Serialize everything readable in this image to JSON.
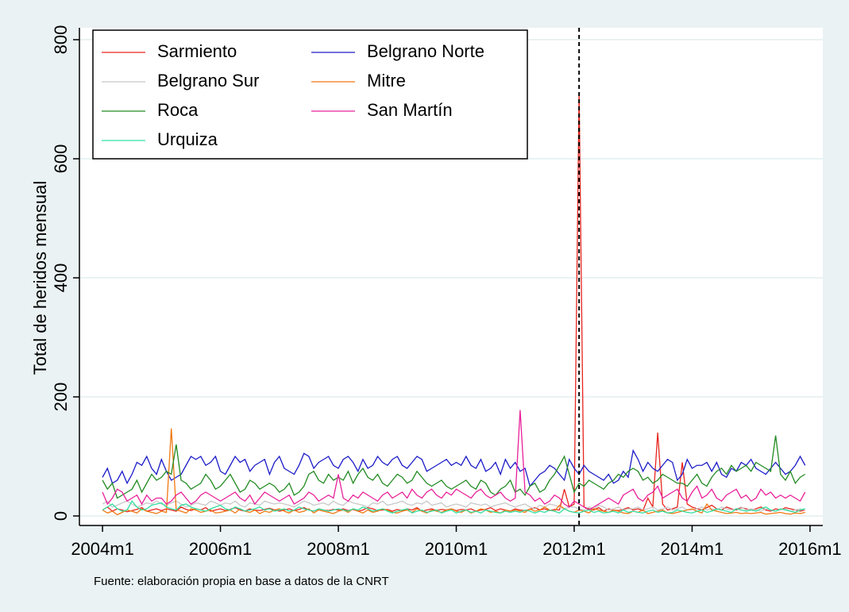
{
  "chart_data": {
    "type": "line",
    "ylabel": "Total de heridos mensual",
    "note": "Fuente: elaboración propia en base a datos de la CNRT",
    "x": [
      528,
      529,
      530,
      531,
      532,
      533,
      534,
      535,
      536,
      537,
      538,
      539,
      540,
      541,
      542,
      543,
      544,
      545,
      546,
      547,
      548,
      549,
      550,
      551,
      552,
      553,
      554,
      555,
      556,
      557,
      558,
      559,
      560,
      561,
      562,
      563,
      564,
      565,
      566,
      567,
      568,
      569,
      570,
      571,
      572,
      573,
      574,
      575,
      576,
      577,
      578,
      579,
      580,
      581,
      582,
      583,
      584,
      585,
      586,
      587,
      588,
      589,
      590,
      591,
      592,
      593,
      594,
      595,
      596,
      597,
      598,
      599,
      600,
      601,
      602,
      603,
      604,
      605,
      606,
      607,
      608,
      609,
      610,
      611,
      612,
      613,
      614,
      615,
      616,
      617,
      618,
      619,
      620,
      621,
      622,
      623,
      624,
      625,
      626,
      627,
      628,
      629,
      630,
      631,
      632,
      633,
      634,
      635,
      636,
      637,
      638,
      639,
      640,
      641,
      642,
      643,
      644,
      645,
      646,
      647,
      648,
      649,
      650,
      651,
      652,
      653,
      654,
      655,
      656,
      657,
      658,
      659,
      660,
      661,
      662,
      663,
      664,
      665,
      666,
      667,
      668,
      669,
      670,
      671
    ],
    "xlim": [
      523.3,
      674.6
    ],
    "xticks": [
      {
        "value": 528,
        "label": "2004m1"
      },
      {
        "value": 552,
        "label": "2006m1"
      },
      {
        "value": 576,
        "label": "2008m1"
      },
      {
        "value": 600,
        "label": "2010m1"
      },
      {
        "value": 624,
        "label": "2012m1"
      },
      {
        "value": 648,
        "label": "2014m1"
      },
      {
        "value": 672,
        "label": "2016m1"
      }
    ],
    "ylim": [
      -16,
      820
    ],
    "yticks": [
      0,
      200,
      400,
      600,
      800
    ],
    "grid": true,
    "vline": 625,
    "legend": "top-left",
    "series": [
      {
        "name": "Sarmiento",
        "color": "#e8251e",
        "values": [
          10,
          15,
          8,
          12,
          10,
          7,
          9,
          11,
          14,
          8,
          10,
          12,
          9,
          12,
          10,
          8,
          15,
          11,
          9,
          12,
          10,
          14,
          8,
          10,
          12,
          9,
          11,
          14,
          10,
          8,
          12,
          10,
          9,
          11,
          13,
          10,
          8,
          10,
          12,
          9,
          11,
          14,
          10,
          8,
          12,
          10,
          9,
          11,
          10,
          12,
          9,
          11,
          8,
          10,
          14,
          12,
          9,
          10,
          11,
          8,
          11,
          9,
          12,
          10,
          14,
          8,
          10,
          12,
          9,
          11,
          10,
          12,
          9,
          11,
          10,
          12,
          8,
          10,
          11,
          14,
          9,
          12,
          10,
          8,
          12,
          10,
          9,
          11,
          14,
          10,
          12,
          9,
          11,
          10,
          45,
          15,
          20,
          710,
          15,
          12,
          10,
          14,
          8,
          12,
          10,
          9,
          11,
          14,
          10,
          12,
          9,
          30,
          15,
          140,
          20,
          10,
          12,
          15,
          90,
          20,
          15,
          12,
          10,
          14,
          18,
          12,
          10,
          15,
          12,
          10,
          14,
          12,
          10,
          12,
          15,
          10,
          8,
          12,
          10,
          14,
          12,
          10,
          8,
          10
        ]
      },
      {
        "name": "Belgrano Norte",
        "color": "#1c1cc8",
        "values": [
          65,
          80,
          55,
          60,
          75,
          55,
          70,
          90,
          85,
          100,
          80,
          70,
          95,
          75,
          60,
          65,
          70,
          85,
          100,
          95,
          100,
          85,
          90,
          100,
          75,
          70,
          85,
          100,
          90,
          95,
          75,
          85,
          90,
          95,
          70,
          90,
          100,
          80,
          75,
          70,
          85,
          105,
          100,
          80,
          90,
          95,
          100,
          85,
          80,
          95,
          100,
          90,
          75,
          95,
          80,
          85,
          100,
          90,
          85,
          95,
          100,
          85,
          80,
          90,
          100,
          95,
          75,
          80,
          85,
          90,
          95,
          85,
          90,
          85,
          100,
          85,
          80,
          95,
          75,
          80,
          90,
          70,
          95,
          80,
          90,
          75,
          80,
          50,
          60,
          70,
          75,
          85,
          80,
          70,
          60,
          95,
          80,
          70,
          85,
          75,
          70,
          65,
          60,
          70,
          55,
          60,
          75,
          65,
          110,
          95,
          75,
          90,
          80,
          75,
          85,
          95,
          90,
          60,
          70,
          95,
          80,
          85,
          85,
          90,
          75,
          90,
          70,
          65,
          80,
          75,
          90,
          85,
          95,
          80,
          75,
          70,
          80,
          90,
          80,
          70,
          75,
          85,
          100,
          85
        ]
      },
      {
        "name": "Belgrano Sur",
        "color": "#c8c8c8",
        "values": [
          20,
          25,
          15,
          18,
          22,
          25,
          20,
          15,
          18,
          22,
          20,
          25,
          20,
          18,
          22,
          25,
          20,
          15,
          18,
          22,
          20,
          18,
          25,
          22,
          18,
          22,
          20,
          25,
          18,
          15,
          22,
          20,
          18,
          25,
          22,
          20,
          22,
          20,
          18,
          15,
          20,
          25,
          22,
          18,
          20,
          22,
          18,
          25,
          20,
          18,
          25,
          22,
          20,
          18,
          15,
          22,
          20,
          25,
          18,
          20,
          22,
          25,
          20,
          18,
          22,
          20,
          25,
          18,
          20,
          22,
          15,
          18,
          20,
          18,
          15,
          22,
          20,
          18,
          20,
          15,
          18,
          20,
          22,
          18,
          15,
          18,
          20,
          15,
          12,
          18,
          15,
          20,
          18,
          15,
          12,
          15,
          15,
          12,
          10,
          15,
          12,
          18,
          15,
          10,
          12,
          15,
          10,
          12,
          12,
          15,
          10,
          12,
          15,
          10,
          12,
          15,
          10,
          12,
          15,
          10,
          10,
          12,
          15,
          10,
          12,
          10,
          15,
          12,
          10,
          12,
          15,
          10,
          12,
          10,
          8,
          12,
          10,
          8,
          10,
          12,
          8,
          10,
          12,
          10
        ]
      },
      {
        "name": "Mitre",
        "color": "#f07810",
        "values": [
          10,
          5,
          8,
          2,
          6,
          10,
          8,
          5,
          12,
          8,
          6,
          4,
          8,
          6,
          147,
          10,
          8,
          5,
          12,
          10,
          6,
          8,
          10,
          5,
          6,
          8,
          10,
          5,
          12,
          8,
          6,
          10,
          4,
          8,
          6,
          10,
          12,
          8,
          5,
          10,
          6,
          8,
          12,
          5,
          10,
          8,
          6,
          4,
          8,
          10,
          6,
          12,
          8,
          5,
          10,
          6,
          8,
          12,
          10,
          6,
          5,
          8,
          10,
          6,
          12,
          8,
          5,
          10,
          8,
          6,
          10,
          12,
          8,
          6,
          10,
          5,
          8,
          12,
          10,
          6,
          8,
          5,
          10,
          8,
          10,
          8,
          6,
          12,
          8,
          10,
          15,
          10,
          8,
          18,
          12,
          8,
          6,
          10,
          8,
          5,
          12,
          10,
          8,
          6,
          10,
          8,
          5,
          4,
          8,
          6,
          10,
          4,
          6,
          8,
          10,
          5,
          4,
          6,
          8,
          10,
          12,
          8,
          5,
          20,
          10,
          8,
          6,
          4,
          5,
          6,
          4,
          5,
          4,
          5,
          6,
          3,
          4,
          5,
          6,
          4,
          3,
          5,
          4,
          6
        ]
      },
      {
        "name": "Roca",
        "color": "#228b22",
        "values": [
          60,
          45,
          55,
          30,
          35,
          40,
          45,
          60,
          40,
          55,
          70,
          60,
          65,
          75,
          70,
          120,
          60,
          55,
          45,
          50,
          55,
          70,
          60,
          45,
          50,
          60,
          70,
          55,
          40,
          45,
          60,
          55,
          45,
          50,
          55,
          50,
          40,
          45,
          55,
          35,
          40,
          50,
          70,
          75,
          60,
          55,
          70,
          60,
          65,
          60,
          75,
          55,
          70,
          80,
          65,
          60,
          70,
          55,
          50,
          60,
          70,
          65,
          55,
          60,
          75,
          65,
          55,
          50,
          55,
          60,
          50,
          45,
          50,
          55,
          60,
          50,
          45,
          60,
          55,
          40,
          35,
          45,
          50,
          60,
          40,
          45,
          35,
          50,
          55,
          40,
          45,
          60,
          70,
          85,
          100,
          70,
          40,
          55,
          50,
          60,
          55,
          50,
          45,
          55,
          60,
          70,
          65,
          75,
          80,
          75,
          60,
          65,
          55,
          60,
          70,
          65,
          60,
          55,
          55,
          50,
          60,
          70,
          55,
          50,
          65,
          75,
          80,
          70,
          85,
          75,
          80,
          85,
          75,
          90,
          85,
          80,
          75,
          135,
          70,
          60,
          75,
          55,
          65,
          70
        ]
      },
      {
        "name": "San Martín",
        "color": "#e8209a",
        "values": [
          40,
          20,
          30,
          45,
          40,
          25,
          30,
          35,
          20,
          35,
          25,
          30,
          30,
          20,
          25,
          35,
          40,
          30,
          20,
          25,
          35,
          40,
          35,
          30,
          25,
          30,
          35,
          40,
          30,
          25,
          35,
          20,
          30,
          40,
          35,
          30,
          25,
          30,
          35,
          20,
          25,
          30,
          40,
          35,
          25,
          30,
          35,
          30,
          70,
          30,
          25,
          35,
          30,
          40,
          35,
          30,
          25,
          35,
          40,
          30,
          35,
          40,
          30,
          45,
          35,
          30,
          40,
          45,
          35,
          30,
          40,
          35,
          45,
          40,
          35,
          30,
          40,
          45,
          35,
          30,
          35,
          40,
          30,
          25,
          30,
          178,
          40,
          35,
          25,
          30,
          20,
          25,
          35,
          30,
          20,
          15,
          25,
          20,
          15,
          10,
          15,
          20,
          25,
          30,
          25,
          20,
          35,
          40,
          45,
          30,
          25,
          35,
          40,
          50,
          30,
          35,
          40,
          45,
          30,
          25,
          40,
          50,
          30,
          35,
          45,
          30,
          25,
          35,
          40,
          45,
          30,
          35,
          25,
          30,
          45,
          35,
          40,
          30,
          35,
          30,
          35,
          30,
          25,
          40
        ]
      },
      {
        "name": "Urquiza",
        "color": "#30e0a0",
        "values": [
          10,
          15,
          20,
          12,
          8,
          10,
          25,
          15,
          10,
          12,
          18,
          20,
          22,
          15,
          12,
          10,
          18,
          20,
          15,
          12,
          10,
          8,
          12,
          15,
          18,
          12,
          10,
          15,
          12,
          8,
          10,
          12,
          15,
          10,
          12,
          8,
          10,
          12,
          8,
          10,
          15,
          12,
          10,
          8,
          12,
          10,
          8,
          10,
          12,
          10,
          8,
          12,
          10,
          15,
          12,
          8,
          10,
          12,
          8,
          5,
          8,
          10,
          12,
          5,
          8,
          10,
          6,
          8,
          10,
          5,
          8,
          10,
          5,
          8,
          10,
          6,
          8,
          5,
          10,
          8,
          6,
          5,
          8,
          6,
          8,
          6,
          10,
          8,
          5,
          8,
          6,
          10,
          8,
          5,
          12,
          8,
          6,
          5,
          8,
          10,
          6,
          8,
          5,
          6,
          8,
          5,
          10,
          6,
          8,
          6,
          5,
          8,
          10,
          6,
          8,
          5,
          6,
          10,
          8,
          6,
          5,
          8,
          10,
          6,
          8,
          12,
          10,
          8,
          6,
          12,
          10,
          8,
          10,
          8,
          12,
          15,
          10,
          8,
          12,
          10,
          8,
          6,
          10,
          12
        ]
      }
    ]
  }
}
